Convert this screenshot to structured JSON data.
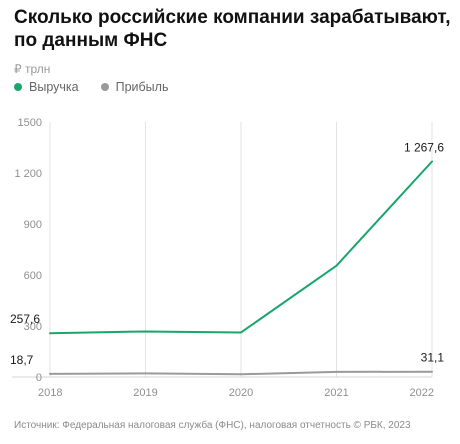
{
  "header": {
    "title": "Сколько российские компании зарабатывают, по данным ФНС",
    "unit": "₽ трлн"
  },
  "legend": [
    {
      "label": "Выручка",
      "color": "#1aa56b"
    },
    {
      "label": "Прибыль",
      "color": "#9a9a9a"
    }
  ],
  "source": "Источник: Федеральная налоговая служба (ФНС), налоговая отчетность  © РБК, 2023",
  "chart_data": {
    "type": "line",
    "title": "Сколько российские компании зарабатывают, по данным ФНС",
    "ylabel": "₽ трлн",
    "x": [
      "2018",
      "2019",
      "2020",
      "2021",
      "2022"
    ],
    "ylim": [
      0,
      1500
    ],
    "yticks": [
      "0",
      "300",
      "600",
      "900",
      "1 200",
      "1500"
    ],
    "grid": "vertical",
    "legend_position": "top-left",
    "series": [
      {
        "name": "Выручка",
        "color": "#1aa56b",
        "values": [
          257.6,
          268,
          262,
          655,
          1267.6
        ],
        "labels": [
          "257,6",
          null,
          null,
          null,
          "1 267,6"
        ]
      },
      {
        "name": "Прибыль",
        "color": "#9a9a9a",
        "values": [
          18.7,
          21,
          16,
          30,
          31.1
        ],
        "labels": [
          "18,7",
          null,
          null,
          null,
          "31,1"
        ]
      }
    ]
  }
}
